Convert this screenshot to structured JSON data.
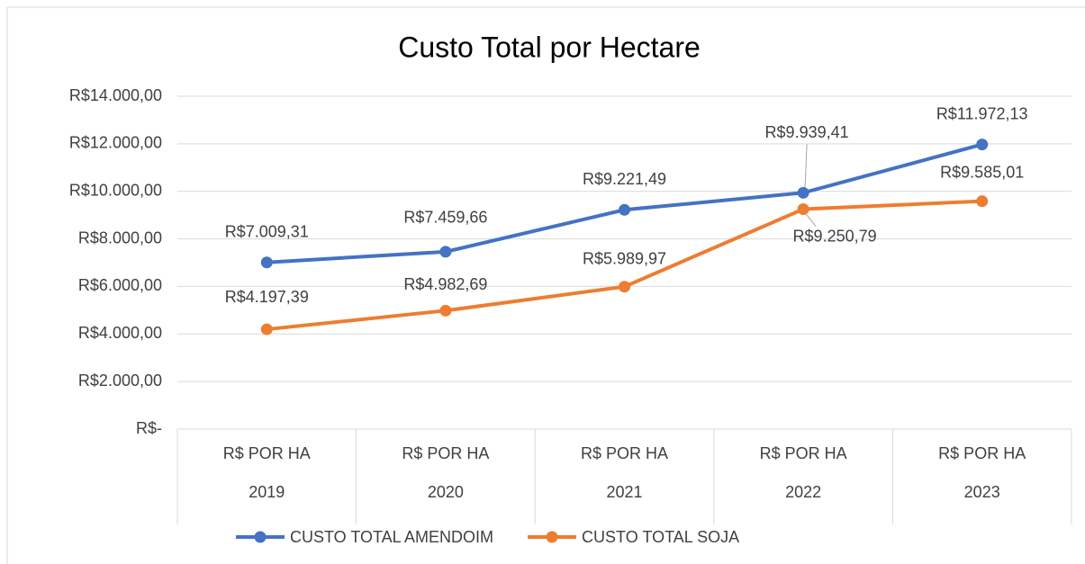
{
  "chart_data": {
    "type": "line",
    "title": "Custo Total por Hectare",
    "categories": [
      [
        "R$ POR HA",
        "2019"
      ],
      [
        "R$ POR HA",
        "2020"
      ],
      [
        "R$ POR HA",
        "2021"
      ],
      [
        "R$ POR HA",
        "2022"
      ],
      [
        "R$ POR HA",
        "2023"
      ]
    ],
    "series": [
      {
        "name": "CUSTO TOTAL AMENDOIM",
        "color": "#4472c4",
        "values": [
          7009.31,
          7459.66,
          9221.49,
          9939.41,
          11972.13
        ],
        "value_labels": [
          "R$7.009,31",
          "R$7.459,66",
          "R$9.221,49",
          "R$9.939,41",
          "R$11.972,13"
        ]
      },
      {
        "name": "CUSTO TOTAL SOJA",
        "color": "#ed7d31",
        "values": [
          4197.39,
          4982.69,
          5989.97,
          9250.79,
          9585.01
        ],
        "value_labels": [
          "R$4.197,39",
          "R$4.982,69",
          "R$5.989,97",
          "R$9.250,79",
          "R$9.585,01"
        ]
      }
    ],
    "ylim": [
      0,
      14000
    ],
    "yticks": [
      {
        "value": 0,
        "label": "R$-"
      },
      {
        "value": 2000,
        "label": "R$2.000,00"
      },
      {
        "value": 4000,
        "label": "R$4.000,00"
      },
      {
        "value": 6000,
        "label": "R$6.000,00"
      },
      {
        "value": 8000,
        "label": "R$8.000,00"
      },
      {
        "value": 10000,
        "label": "R$10.000,00"
      },
      {
        "value": 12000,
        "label": "R$12.000,00"
      },
      {
        "value": 14000,
        "label": "R$14.000,00"
      }
    ],
    "grid": true,
    "legend": "bottom"
  }
}
